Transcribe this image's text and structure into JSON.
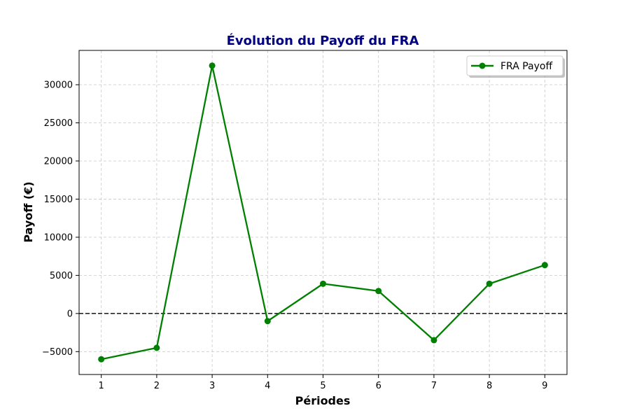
{
  "chart_data": {
    "type": "line",
    "title": "Évolution du Payoff du FRA",
    "xlabel": "Périodes",
    "ylabel": "Payoff (€)",
    "x": [
      1,
      2,
      3,
      4,
      5,
      6,
      7,
      8,
      9
    ],
    "x_ticks": [
      "1",
      "2",
      "3",
      "4",
      "5",
      "6",
      "7",
      "8",
      "9"
    ],
    "y_ticks": [
      "−5000",
      "0",
      "5000",
      "10000",
      "15000",
      "20000",
      "25000",
      "30000"
    ],
    "y_tick_values": [
      -5000,
      0,
      5000,
      10000,
      15000,
      20000,
      25000,
      30000
    ],
    "xlim": [
      0.6,
      9.4
    ],
    "ylim": [
      -8000,
      34500
    ],
    "grid": true,
    "reference_line": {
      "y": 0,
      "style": "dashed",
      "color": "#000000"
    },
    "legend_position": "top-right",
    "series": [
      {
        "name": "FRA Payoff",
        "color": "#008000",
        "marker": "circle",
        "values": [
          -6000,
          -4500,
          32500,
          -1000,
          3900,
          2950,
          -3500,
          3900,
          6350
        ]
      }
    ],
    "colors": {
      "title": "#000080",
      "grid": "#c8c8c8"
    }
  }
}
